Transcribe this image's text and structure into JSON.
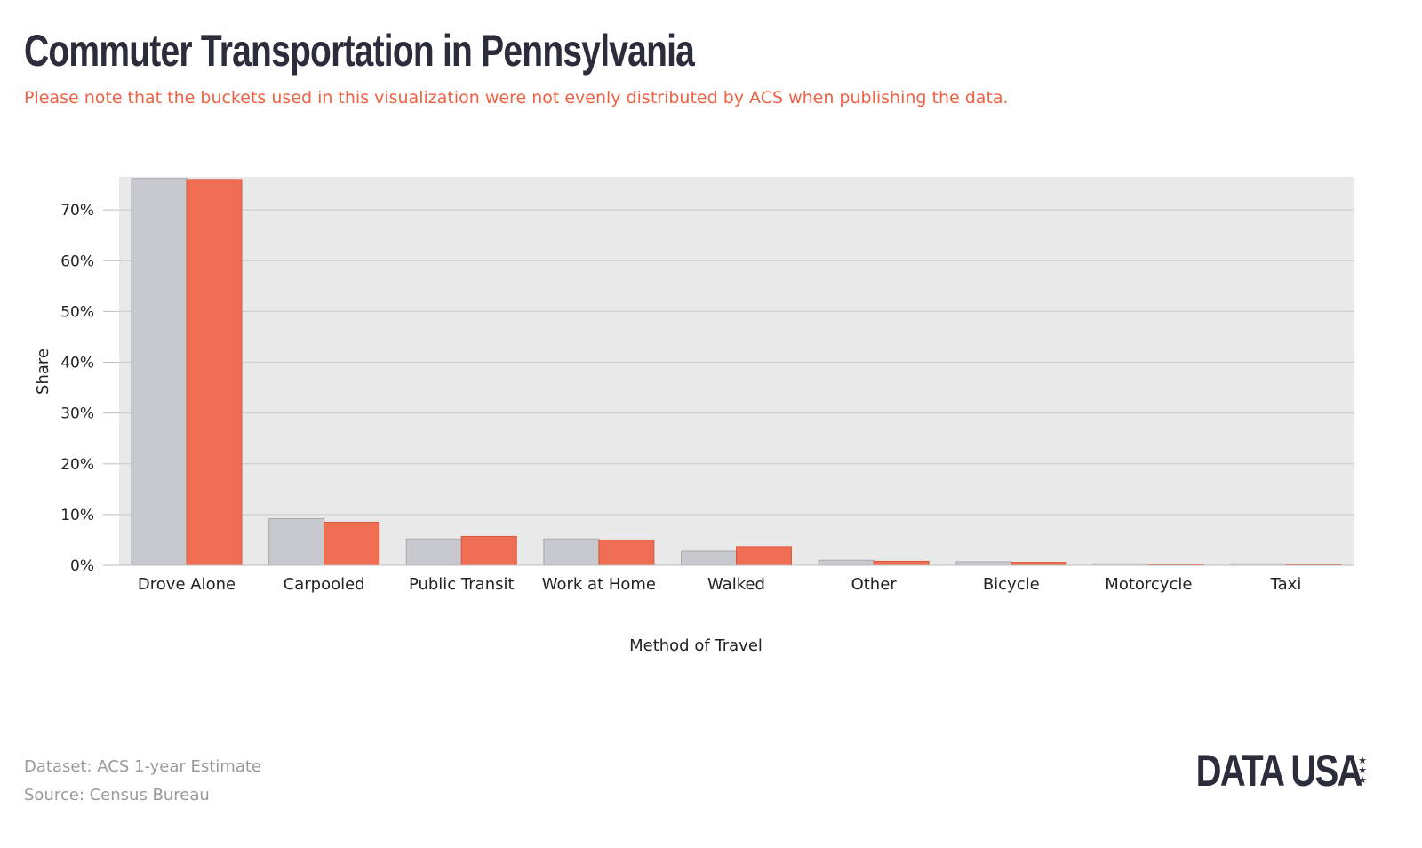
{
  "header": {
    "title": "Commuter Transportation in Pennsylvania",
    "subtitle": "Please note that the buckets used in this visualization were not evenly distributed by ACS when publishing the data."
  },
  "footer": {
    "dataset": "Dataset: ACS 1-year Estimate",
    "source": "Source: Census Bureau"
  },
  "logo": {
    "text": "DATA USA",
    "stars": "★★★"
  },
  "colors": {
    "series_a": "#c8c9ce",
    "series_b": "#ef6d53",
    "plot_bg": "#e9e9e9",
    "grid": "#cfcfcf"
  },
  "chart_data": {
    "type": "bar",
    "title": "Commuter Transportation in Pennsylvania",
    "xlabel": "Method of Travel",
    "ylabel": "Share",
    "ylim": [
      0,
      76.5
    ],
    "yticks": [
      0,
      10,
      20,
      30,
      40,
      50,
      60,
      70
    ],
    "ytick_labels": [
      "0%",
      "10%",
      "20%",
      "30%",
      "40%",
      "50%",
      "60%",
      "70%"
    ],
    "grid": true,
    "categories": [
      "Drove Alone",
      "Carpooled",
      "Public Transit",
      "Work at Home",
      "Walked",
      "Other",
      "Bicycle",
      "Motorcycle",
      "Taxi"
    ],
    "series": [
      {
        "values": [
          76.2,
          9.2,
          5.2,
          5.2,
          2.8,
          1.0,
          0.7,
          0.3,
          0.3
        ]
      },
      {
        "values": [
          76.0,
          8.5,
          5.7,
          5.0,
          3.7,
          0.8,
          0.6,
          0.2,
          0.2
        ]
      }
    ]
  }
}
